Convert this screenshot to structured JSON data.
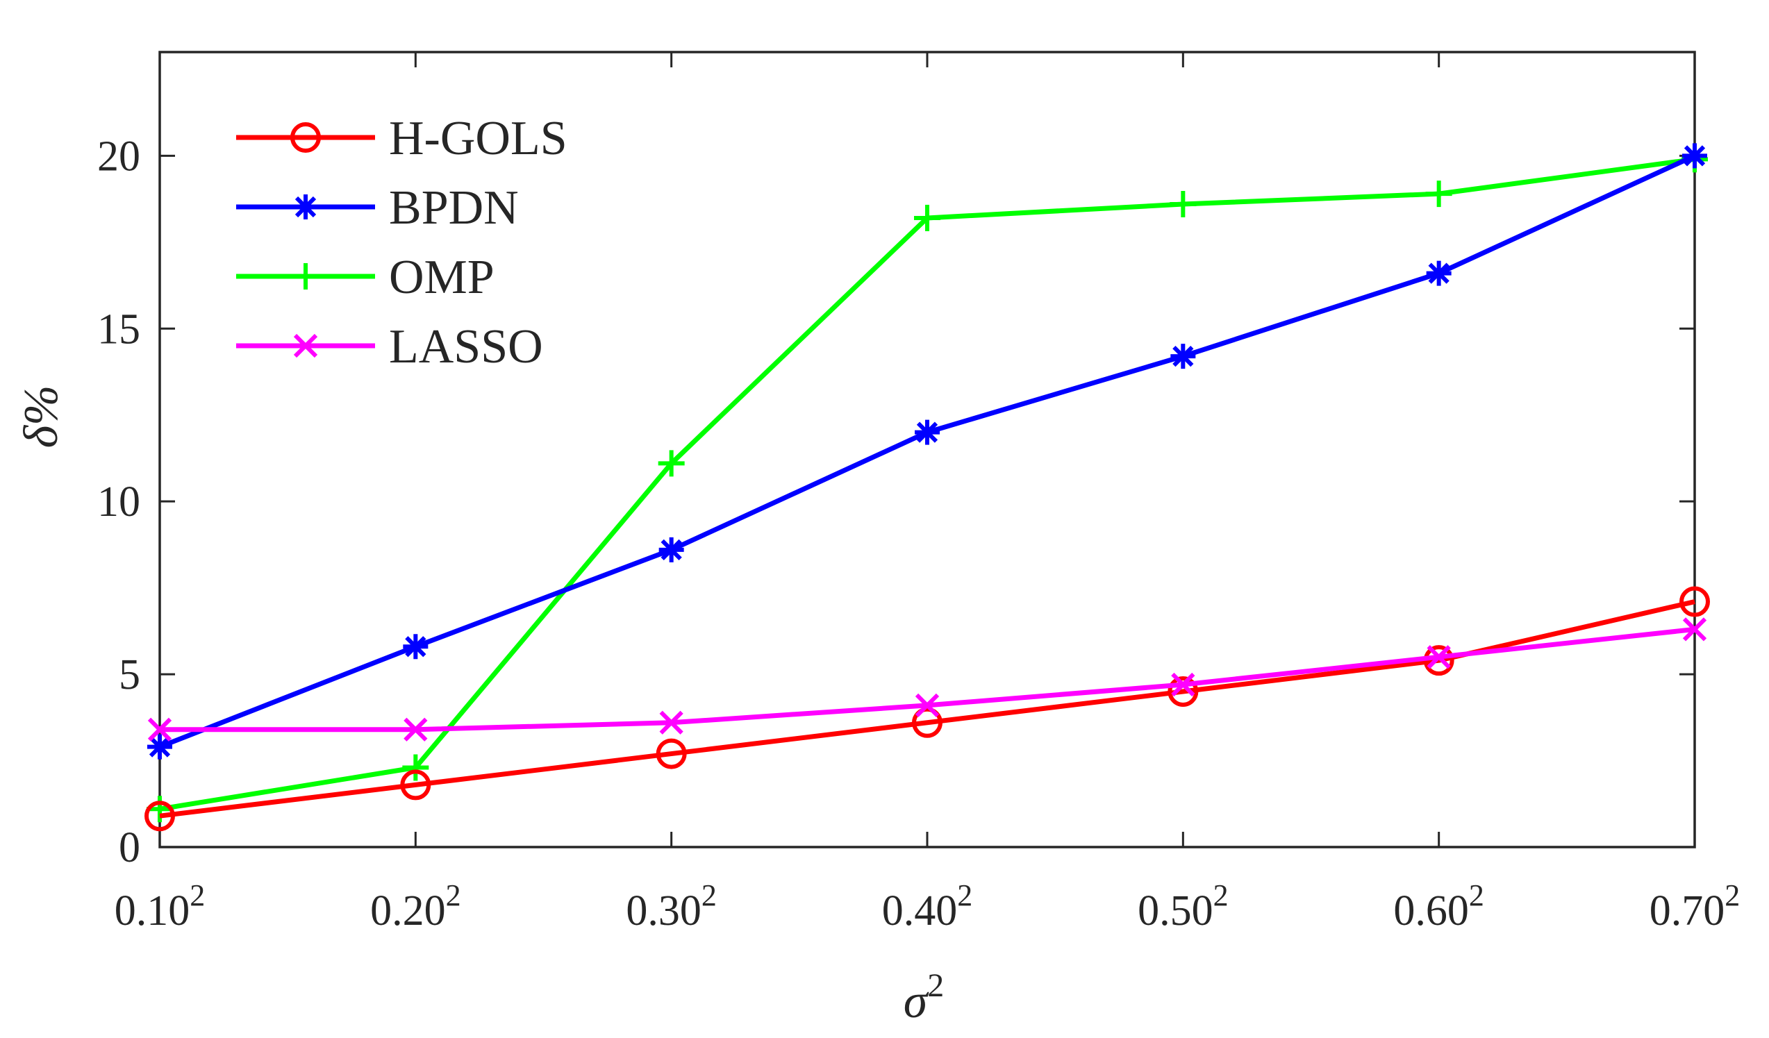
{
  "chart_data": {
    "type": "line",
    "title": "",
    "xlabel": "σ",
    "xlabel_sup": "2",
    "ylabel": "δ%",
    "categories": [
      "0.10",
      "0.20",
      "0.30",
      "0.40",
      "0.50",
      "0.60",
      "0.70"
    ],
    "category_sup": "2",
    "ylim": [
      0,
      23
    ],
    "yticks": [
      0,
      5,
      10,
      15,
      20
    ],
    "legend_position": "top-left",
    "grid": false,
    "series": [
      {
        "name": "H-GOLS",
        "color": "#ff0000",
        "marker": "circle",
        "values": [
          0.9,
          1.8,
          2.7,
          3.6,
          4.5,
          5.4,
          7.1
        ]
      },
      {
        "name": "BPDN",
        "color": "#0000ff",
        "marker": "asterisk",
        "values": [
          2.9,
          5.8,
          8.6,
          12.0,
          14.2,
          16.6,
          20.0
        ]
      },
      {
        "name": "OMP",
        "color": "#00ff00",
        "marker": "plus",
        "values": [
          1.1,
          2.3,
          11.1,
          18.2,
          18.6,
          18.9,
          19.9
        ]
      },
      {
        "name": "LASSO",
        "color": "#ff00ff",
        "marker": "cross",
        "values": [
          3.4,
          3.4,
          3.6,
          4.1,
          4.7,
          5.5,
          6.3
        ]
      }
    ]
  }
}
